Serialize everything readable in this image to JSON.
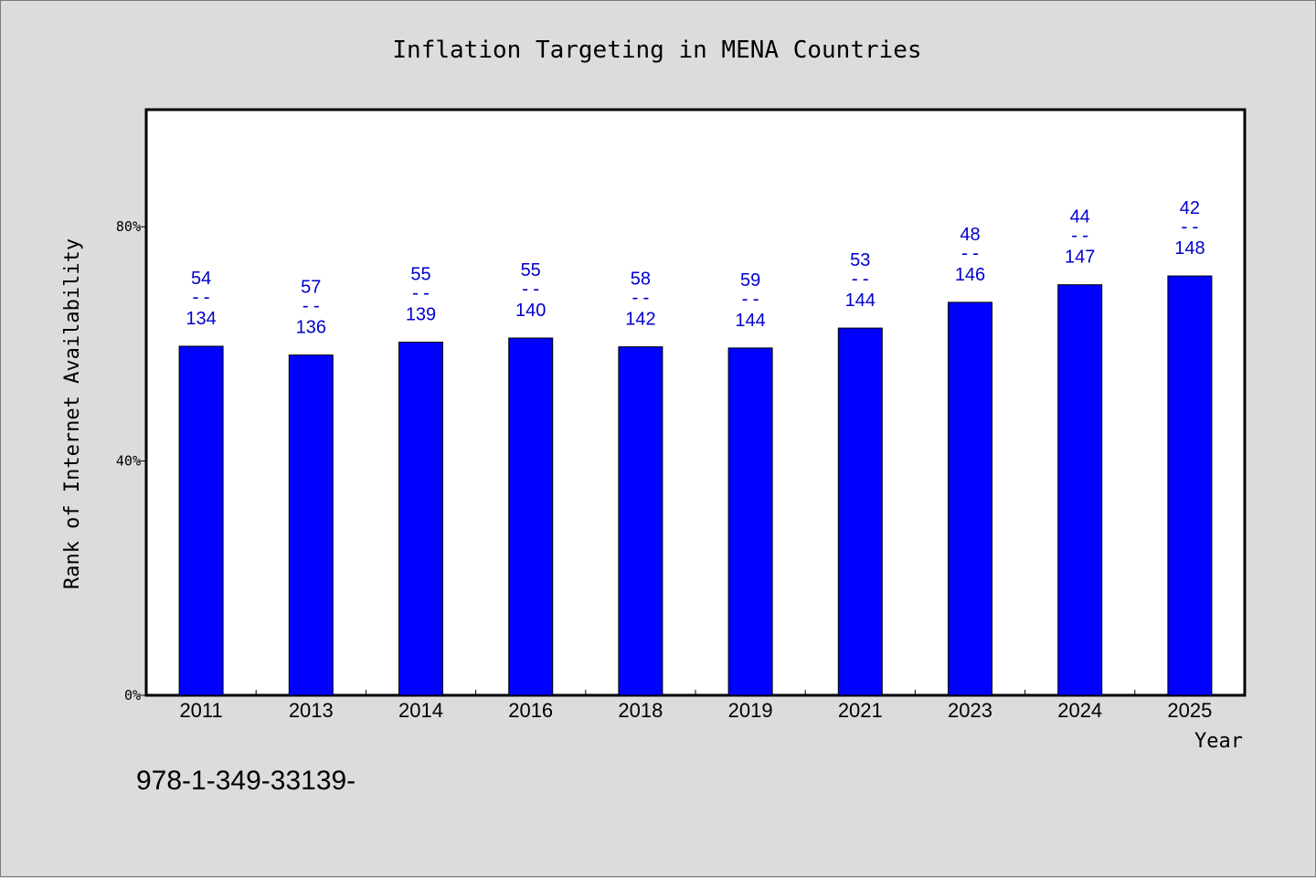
{
  "chart_data": {
    "type": "bar",
    "title": "Inflation Targeting in MENA Countries",
    "xlabel": "Year",
    "ylabel": "Rank of Internet Availability",
    "categories": [
      "2011",
      "2013",
      "2014",
      "2016",
      "2018",
      "2019",
      "2021",
      "2023",
      "2024",
      "2025"
    ],
    "values": [
      59.6,
      58.1,
      60.3,
      61.0,
      59.5,
      59.3,
      62.7,
      67.1,
      70.1,
      71.6
    ],
    "value_labels": [
      {
        "top": "54",
        "sep": "--",
        "bottom": "134"
      },
      {
        "top": "57",
        "sep": "--",
        "bottom": "136"
      },
      {
        "top": "55",
        "sep": "--",
        "bottom": "139"
      },
      {
        "top": "55",
        "sep": "--",
        "bottom": "140"
      },
      {
        "top": "58",
        "sep": "--",
        "bottom": "142"
      },
      {
        "top": "59",
        "sep": "--",
        "bottom": "144"
      },
      {
        "top": "53",
        "sep": "--",
        "bottom": "144"
      },
      {
        "top": "48",
        "sep": "--",
        "bottom": "146"
      },
      {
        "top": "44",
        "sep": "--",
        "bottom": "147"
      },
      {
        "top": "42",
        "sep": "--",
        "bottom": "148"
      }
    ],
    "ylim": [
      0,
      100
    ],
    "yticks": [
      0,
      40,
      80
    ],
    "ytick_labels": [
      "0%",
      "40%",
      "80%"
    ],
    "grid": false,
    "bar_color": "#0000ff",
    "label_color": "#0000cc"
  },
  "footnote": "978-1-349-33139-"
}
